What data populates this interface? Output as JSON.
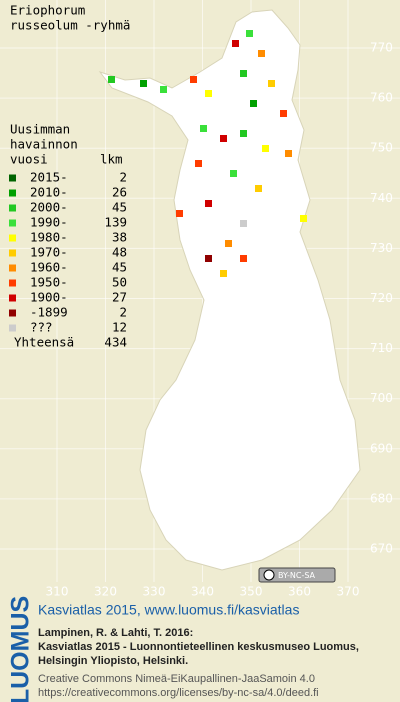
{
  "title": [
    "Eriophorum",
    "russeolum -ryhmä"
  ],
  "legend": {
    "heading": [
      "Uusimman",
      "havainnon"
    ],
    "col_period": "vuosi",
    "col_count": "lkm",
    "entries": [
      {
        "label": "2015-",
        "count": 2,
        "color": "#006400"
      },
      {
        "label": "2010-",
        "count": 26,
        "color": "#00a000"
      },
      {
        "label": "2000-",
        "count": 45,
        "color": "#22c822"
      },
      {
        "label": "1990-",
        "count": 139,
        "color": "#3ae03a"
      },
      {
        "label": "1980-",
        "count": 38,
        "color": "#ffff00"
      },
      {
        "label": "1970-",
        "count": 48,
        "color": "#ffcc00"
      },
      {
        "label": "1960-",
        "count": 45,
        "color": "#ff8c00"
      },
      {
        "label": "1950-",
        "count": 50,
        "color": "#ff3c00"
      },
      {
        "label": "1900-",
        "count": 27,
        "color": "#d00000"
      },
      {
        "label": "-1899",
        "count": 2,
        "color": "#900000"
      },
      {
        "label": "???",
        "count": 12,
        "color": "#cccccc"
      }
    ],
    "total_label": "Yhteensä",
    "total": 434
  },
  "grid": {
    "xticks": [
      310,
      320,
      330,
      340,
      350,
      360,
      370
    ],
    "yticks": [
      770,
      760,
      750,
      740,
      730,
      720,
      710,
      700,
      690,
      680,
      670
    ]
  },
  "cc_badge": "BY-NC-SA",
  "footer": {
    "logo": "LUOMUS",
    "link": "Kasviatlas 2015, www.luomus.fi/kasviatlas",
    "citation": [
      "Lampinen, R. & Lahti, T. 2016:",
      "Kasviatlas 2015 - Luonnontieteellinen keskusmuseo Luomus,",
      "Helsingin Yliopisto, Helsinki."
    ],
    "license": [
      "Creative Commons Nimeä-EiKaupallinen-JaaSamoin 4.0",
      "https://creativecommons.org/licenses/by-nc-sa/4.0/deed.fi"
    ]
  }
}
